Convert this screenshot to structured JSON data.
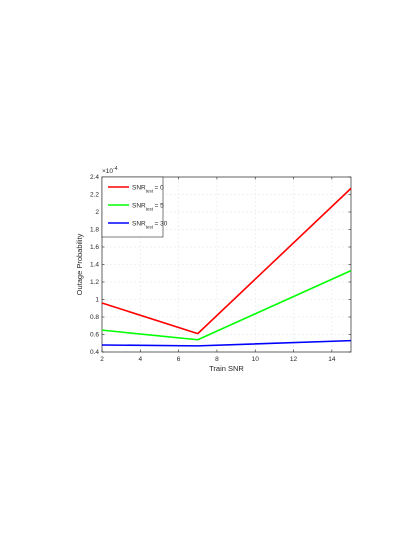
{
  "chart_data": {
    "type": "line",
    "xlabel": "Train SNR",
    "ylabel": "Outage Probability",
    "y_exponent_label": "×10",
    "y_exponent_power": "-4",
    "xlim": [
      2,
      15
    ],
    "ylim": [
      0.4,
      2.4
    ],
    "xticks": [
      2,
      4,
      6,
      8,
      10,
      12,
      14
    ],
    "yticks": [
      0.4,
      0.6,
      0.8,
      1,
      1.2,
      1.4,
      1.6,
      1.8,
      2,
      2.2,
      2.4
    ],
    "xtick_labels": [
      "2",
      "4",
      "6",
      "8",
      "10",
      "12",
      "14"
    ],
    "ytick_labels": [
      "0.4",
      "0.6",
      "0.8",
      "1",
      "1.2",
      "1.4",
      "1.6",
      "1.8",
      "2",
      "2.2",
      "2.4"
    ],
    "grid": true,
    "legend_position": "top-left",
    "series": [
      {
        "label_main": "SNR",
        "label_sub": "test",
        "label_value": "= 0",
        "color": "#ff0000",
        "x": [
          2,
          7,
          15
        ],
        "y": [
          0.96,
          0.61,
          2.27
        ]
      },
      {
        "label_main": "SNR",
        "label_sub": "test",
        "label_value": "= 5",
        "color": "#00ff00",
        "x": [
          2,
          7,
          15
        ],
        "y": [
          0.65,
          0.54,
          1.33
        ]
      },
      {
        "label_main": "SNR",
        "label_sub": "test",
        "label_value": "= 30",
        "color": "#0000ff",
        "x": [
          2,
          7,
          15
        ],
        "y": [
          0.48,
          0.47,
          0.53
        ]
      }
    ]
  }
}
